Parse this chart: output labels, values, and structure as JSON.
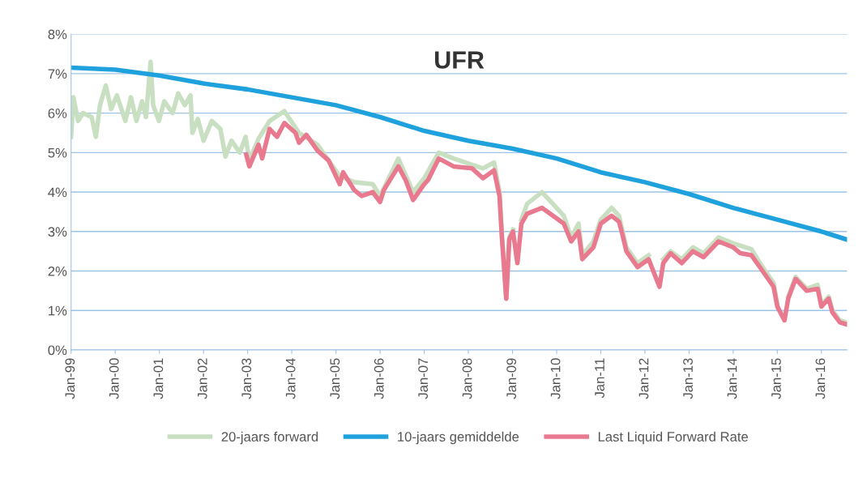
{
  "chart_data": {
    "type": "line",
    "title": "UFR",
    "xlim": [
      "1999-01-01",
      "2016-07-31"
    ],
    "xticks": [
      {
        "value": "1999-01-01",
        "label": "Jan-99"
      },
      {
        "value": "2000-01-01",
        "label": "Jan-00"
      },
      {
        "value": "2001-01-01",
        "label": "Jan-01"
      },
      {
        "value": "2002-01-01",
        "label": "Jan-02"
      },
      {
        "value": "2003-01-01",
        "label": "Jan-03"
      },
      {
        "value": "2004-01-01",
        "label": "Jan-04"
      },
      {
        "value": "2005-01-01",
        "label": "Jan-05"
      },
      {
        "value": "2006-01-01",
        "label": "Jan-06"
      },
      {
        "value": "2007-01-01",
        "label": "Jan-07"
      },
      {
        "value": "2008-01-01",
        "label": "Jan-08"
      },
      {
        "value": "2009-01-01",
        "label": "Jan-09"
      },
      {
        "value": "2010-01-01",
        "label": "Jan-10"
      },
      {
        "value": "2011-01-01",
        "label": "Jan-11"
      },
      {
        "value": "2012-01-01",
        "label": "Jan-12"
      },
      {
        "value": "2013-01-01",
        "label": "Jan-13"
      },
      {
        "value": "2014-01-01",
        "label": "Jan-14"
      },
      {
        "value": "2015-01-01",
        "label": "Jan-15"
      },
      {
        "value": "2016-01-01",
        "label": "Jan-16"
      }
    ],
    "ylim": [
      0,
      8
    ],
    "yticks": [
      {
        "value": 0,
        "label": "0%"
      },
      {
        "value": 1,
        "label": "1%"
      },
      {
        "value": 2,
        "label": "2%"
      },
      {
        "value": 3,
        "label": "3%"
      },
      {
        "value": 4,
        "label": "4%"
      },
      {
        "value": 5,
        "label": "5%"
      },
      {
        "value": 6,
        "label": "6%"
      },
      {
        "value": 7,
        "label": "7%"
      },
      {
        "value": 8,
        "label": "8%"
      }
    ],
    "grid": "y",
    "legend": "bottom",
    "marker": "none",
    "line_style": "solid",
    "series": [
      {
        "name": "20-jaars forward",
        "color": "#c9dfc2",
        "x": [
          "1999-01-01",
          "1999-01-20",
          "1999-02-28",
          "1999-04-10",
          "1999-06-20",
          "1999-07-25",
          "1999-08-28",
          "1999-10-15",
          "1999-11-28",
          "2000-01-15",
          "2000-03-25",
          "2000-05-10",
          "2000-06-25",
          "2000-08-10",
          "2000-09-12",
          "2000-10-20",
          "2000-11-10",
          "2000-12-28",
          "2001-02-10",
          "2001-04-20",
          "2001-06-05",
          "2001-07-30",
          "2001-09-15",
          "2001-10-01",
          "2001-11-15",
          "2002-01-01",
          "2002-03-10",
          "2002-05-20",
          "2002-07-01",
          "2002-08-20",
          "2002-10-28",
          "2002-12-15",
          "2003-01-15",
          "2003-04-01",
          "2003-07-01",
          "2003-11-01",
          "2004-03-01",
          "2004-08-01",
          "2005-02-01",
          "2005-06-01",
          "2005-11-01",
          "2006-01-01",
          "2006-06-01",
          "2006-10-01",
          "2007-01-01",
          "2007-05-01",
          "2007-09-01",
          "2008-05-01",
          "2008-08-01",
          "2008-09-15",
          "2008-10-05",
          "2008-11-10",
          "2008-12-05",
          "2009-01-05",
          "2009-02-10",
          "2009-03-15",
          "2009-05-01",
          "2009-09-01",
          "2009-12-01",
          "2010-03-01",
          "2010-05-01",
          "2010-07-01",
          "2010-08-01",
          "2010-11-01",
          "2011-01-01",
          "2011-04-01",
          "2011-06-01",
          "2011-07-01",
          "2011-08-01",
          "2011-11-01",
          "2012-02-01",
          "2012-05-01",
          "2012-06-01",
          "2012-08-01",
          "2012-11-01",
          "2013-02-01",
          "2013-05-01",
          "2013-09-01",
          "2014-01-01",
          "2014-06-01",
          "2014-09-01",
          "2014-12-01",
          "2015-01-01",
          "2015-03-01",
          "2015-04-01",
          "2015-06-01",
          "2015-09-01",
          "2015-12-01",
          "2016-01-01",
          "2016-03-01",
          "2016-04-01",
          "2016-06-01",
          "2016-07-25"
        ],
        "values": [
          5.4,
          6.4,
          5.8,
          6.0,
          5.9,
          5.4,
          6.2,
          6.7,
          6.1,
          6.45,
          5.8,
          6.4,
          5.8,
          6.3,
          5.9,
          7.3,
          6.2,
          5.8,
          6.3,
          6.0,
          6.5,
          6.2,
          6.45,
          5.5,
          5.85,
          5.3,
          5.8,
          5.6,
          4.9,
          5.3,
          5.0,
          5.4,
          4.8,
          5.35,
          5.8,
          6.05,
          5.5,
          5.2,
          4.4,
          4.25,
          4.2,
          3.9,
          4.85,
          4.0,
          4.35,
          5.0,
          4.85,
          4.6,
          4.75,
          4.0,
          2.9,
          1.3,
          2.85,
          3.05,
          null,
          3.3,
          3.7,
          4.0,
          3.7,
          3.4,
          2.85,
          3.2,
          2.4,
          2.75,
          3.3,
          3.6,
          3.4,
          3.0,
          2.6,
          2.2,
          2.4,
          null,
          2.3,
          2.5,
          2.3,
          2.6,
          2.45,
          2.85,
          2.7,
          2.55,
          2.1,
          1.7,
          1.15,
          null,
          1.35,
          1.85,
          1.55,
          1.65,
          1.15,
          1.35,
          1.0,
          0.75,
          0.7
        ]
      },
      {
        "name": "10-jaars gemiddelde",
        "color": "#1ea1dc",
        "x": [
          "1999-01-01",
          "2000-01-01",
          "2001-01-01",
          "2002-01-01",
          "2003-01-01",
          "2004-01-01",
          "2005-01-01",
          "2006-01-01",
          "2007-01-01",
          "2008-01-01",
          "2009-01-01",
          "2010-01-01",
          "2011-01-01",
          "2012-01-01",
          "2013-01-01",
          "2014-01-01",
          "2015-01-01",
          "2016-01-01",
          "2016-07-25"
        ],
        "values": [
          7.15,
          7.1,
          6.95,
          6.75,
          6.6,
          6.4,
          6.2,
          5.9,
          5.55,
          5.3,
          5.1,
          4.85,
          4.5,
          4.25,
          3.95,
          3.6,
          3.3,
          3.0,
          2.8
        ]
      },
      {
        "name": "Last Liquid Forward Rate",
        "color": "#e8798e",
        "x": [
          "2002-12-20",
          "2003-01-15",
          "2003-04-01",
          "2003-05-01",
          "2003-07-01",
          "2003-09-01",
          "2003-11-01",
          "2004-02-01",
          "2004-03-01",
          "2004-05-01",
          "2004-08-01",
          "2004-11-01",
          "2005-02-01",
          "2005-03-01",
          "2005-06-01",
          "2005-08-01",
          "2005-11-01",
          "2006-01-01",
          "2006-02-01",
          "2006-06-01",
          "2006-08-01",
          "2006-10-01",
          "2007-01-01",
          "2007-02-01",
          "2007-05-01",
          "2007-09-01",
          "2008-02-01",
          "2008-05-01",
          "2008-08-01",
          "2008-09-15",
          "2008-10-05",
          "2008-11-10",
          "2008-12-05",
          "2009-01-05",
          "2009-02-10",
          "2009-03-15",
          "2009-05-01",
          "2009-09-01",
          "2009-12-01",
          "2010-03-01",
          "2010-05-01",
          "2010-07-01",
          "2010-08-01",
          "2010-11-01",
          "2011-01-01",
          "2011-04-01",
          "2011-06-01",
          "2011-07-01",
          "2011-08-01",
          "2011-11-01",
          "2012-02-01",
          "2012-05-01",
          "2012-06-01",
          "2012-08-01",
          "2012-11-01",
          "2013-02-01",
          "2013-05-01",
          "2013-09-01",
          "2014-01-01",
          "2014-03-01",
          "2014-06-01",
          "2014-09-01",
          "2014-12-01",
          "2015-01-01",
          "2015-03-01",
          "2015-04-01",
          "2015-06-01",
          "2015-09-01",
          "2015-12-01",
          "2016-01-01",
          "2016-03-01",
          "2016-04-01",
          "2016-06-01",
          "2016-07-25"
        ],
        "values": [
          4.95,
          4.65,
          5.2,
          4.85,
          5.6,
          5.4,
          5.75,
          5.5,
          5.25,
          5.45,
          5.05,
          4.8,
          4.2,
          4.5,
          4.05,
          3.9,
          4.0,
          3.75,
          4.05,
          4.65,
          4.3,
          3.8,
          4.2,
          4.3,
          4.85,
          4.65,
          4.6,
          4.35,
          4.55,
          3.9,
          2.85,
          1.3,
          2.8,
          3.0,
          2.2,
          3.2,
          3.45,
          3.6,
          3.4,
          3.2,
          2.75,
          3.0,
          2.3,
          2.6,
          3.2,
          3.4,
          3.25,
          2.9,
          2.5,
          2.1,
          2.3,
          1.6,
          2.2,
          2.45,
          2.2,
          2.5,
          2.35,
          2.75,
          2.6,
          2.45,
          2.4,
          2.0,
          1.6,
          1.1,
          0.75,
          1.3,
          1.8,
          1.5,
          1.55,
          1.1,
          1.3,
          0.95,
          0.7,
          0.65
        ]
      }
    ]
  }
}
